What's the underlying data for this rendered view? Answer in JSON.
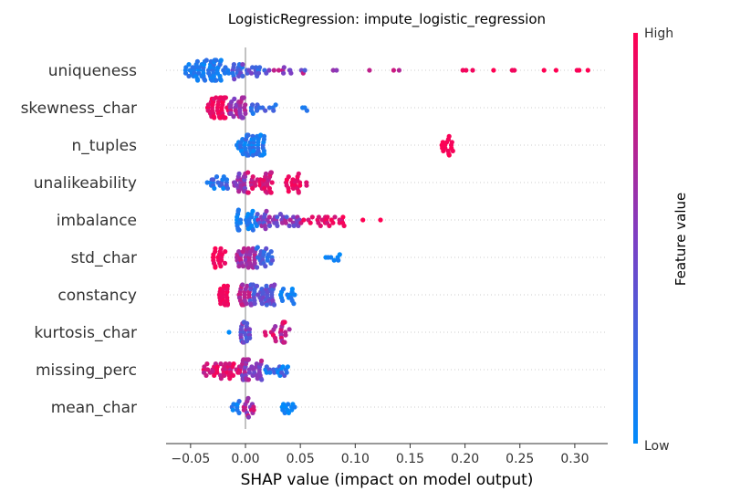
{
  "chart_data": {
    "type": "scatter",
    "subtype": "shap-beeswarm",
    "title": "LogisticRegression: impute_logistic_regression",
    "xlabel": "SHAP value (impact on model output)",
    "xlim": [
      -0.07,
      0.33
    ],
    "xticks": [
      -0.05,
      0.0,
      0.05,
      0.1,
      0.15,
      0.2,
      0.25,
      0.3
    ],
    "xtick_labels": [
      "−0.05",
      "0.00",
      "0.05",
      "0.10",
      "0.15",
      "0.20",
      "0.25",
      "0.30"
    ],
    "grid": "horizontal dotted lines per feature",
    "colorbar": {
      "label": "Feature value",
      "high": "High",
      "low": "Low",
      "low_color": "#008bfb",
      "high_color": "#ff0052"
    },
    "features": [
      {
        "name": "uniqueness",
        "clusters": [
          {
            "range": [
              -0.055,
              -0.015
            ],
            "n": 70,
            "color": [
              0.0,
              0.2
            ]
          },
          {
            "range": [
              -0.015,
              0.02
            ],
            "n": 30,
            "color": [
              0.1,
              0.5
            ]
          },
          {
            "range": [
              0.02,
              0.055
            ],
            "n": 12,
            "color": [
              0.3,
              0.8
            ]
          }
        ],
        "points": [
          {
            "x": 0.08,
            "c": 0.6
          },
          {
            "x": 0.083,
            "c": 0.55
          },
          {
            "x": 0.113,
            "c": 0.75
          },
          {
            "x": 0.135,
            "c": 0.8
          },
          {
            "x": 0.14,
            "c": 0.7
          },
          {
            "x": 0.198,
            "c": 0.95
          },
          {
            "x": 0.201,
            "c": 0.95
          },
          {
            "x": 0.207,
            "c": 0.95
          },
          {
            "x": 0.226,
            "c": 1.0
          },
          {
            "x": 0.243,
            "c": 0.95
          },
          {
            "x": 0.245,
            "c": 0.95
          },
          {
            "x": 0.272,
            "c": 1.0
          },
          {
            "x": 0.283,
            "c": 1.0
          },
          {
            "x": 0.302,
            "c": 0.95
          },
          {
            "x": 0.304,
            "c": 1.0
          },
          {
            "x": 0.312,
            "c": 1.0
          }
        ]
      },
      {
        "name": "skewness_char",
        "clusters": [
          {
            "range": [
              -0.035,
              -0.015
            ],
            "n": 45,
            "color": [
              0.85,
              1.0
            ]
          },
          {
            "range": [
              -0.015,
              0.0
            ],
            "n": 30,
            "color": [
              0.5,
              0.8
            ]
          },
          {
            "range": [
              0.005,
              0.03
            ],
            "n": 14,
            "color": [
              0.1,
              0.35
            ]
          }
        ],
        "points": [
          {
            "x": 0.052,
            "c": 0.1
          },
          {
            "x": 0.054,
            "c": 0.1
          },
          {
            "x": 0.056,
            "c": 0.15
          }
        ]
      },
      {
        "name": "n_tuples",
        "clusters": [
          {
            "range": [
              -0.008,
              0.018
            ],
            "n": 55,
            "color": [
              0.0,
              0.25
            ]
          },
          {
            "range": [
              0.178,
              0.19
            ],
            "n": 16,
            "color": [
              0.95,
              1.0
            ]
          }
        ],
        "points": []
      },
      {
        "name": "unalikeability",
        "clusters": [
          {
            "range": [
              -0.035,
              -0.015
            ],
            "n": 20,
            "color": [
              0.0,
              0.35
            ]
          },
          {
            "range": [
              -0.012,
              0.0
            ],
            "n": 22,
            "color": [
              0.4,
              0.7
            ]
          },
          {
            "range": [
              0.0,
              0.025
            ],
            "n": 35,
            "color": [
              0.7,
              1.0
            ]
          },
          {
            "range": [
              0.037,
              0.058
            ],
            "n": 22,
            "color": [
              0.85,
              1.0
            ]
          }
        ],
        "points": []
      },
      {
        "name": "imbalance",
        "clusters": [
          {
            "range": [
              -0.008,
              0.012
            ],
            "n": 30,
            "color": [
              0.0,
              0.2
            ]
          },
          {
            "range": [
              0.01,
              0.05
            ],
            "n": 40,
            "color": [
              0.3,
              0.75
            ]
          },
          {
            "range": [
              0.05,
              0.09
            ],
            "n": 25,
            "color": [
              0.8,
              1.0
            ]
          }
        ],
        "points": [
          {
            "x": 0.107,
            "c": 1.0
          },
          {
            "x": 0.123,
            "c": 1.0
          }
        ]
      },
      {
        "name": "std_char",
        "clusters": [
          {
            "range": [
              -0.03,
              -0.018
            ],
            "n": 20,
            "color": [
              0.9,
              1.0
            ]
          },
          {
            "range": [
              -0.008,
              0.01
            ],
            "n": 35,
            "color": [
              0.5,
              0.8
            ]
          },
          {
            "range": [
              0.01,
              0.025
            ],
            "n": 22,
            "color": [
              0.1,
              0.4
            ]
          },
          {
            "range": [
              0.07,
              0.088
            ],
            "n": 7,
            "color": [
              0.0,
              0.1
            ]
          }
        ],
        "points": []
      },
      {
        "name": "constancy",
        "clusters": [
          {
            "range": [
              -0.024,
              -0.016
            ],
            "n": 22,
            "color": [
              0.9,
              1.0
            ]
          },
          {
            "range": [
              -0.006,
              0.004
            ],
            "n": 22,
            "color": [
              0.6,
              0.85
            ]
          },
          {
            "range": [
              0.004,
              0.028
            ],
            "n": 45,
            "color": [
              0.25,
              0.55
            ]
          },
          {
            "range": [
              0.03,
              0.045
            ],
            "n": 14,
            "color": [
              0.0,
              0.15
            ]
          }
        ],
        "points": []
      },
      {
        "name": "kurtosis_char",
        "clusters": [
          {
            "range": [
              -0.005,
              0.004
            ],
            "n": 22,
            "color": [
              0.2,
              0.6
            ]
          },
          {
            "range": [
              0.015,
              0.04
            ],
            "n": 28,
            "color": [
              0.6,
              1.0
            ]
          }
        ],
        "points": [
          {
            "x": -0.015,
            "c": 0.0
          }
        ]
      },
      {
        "name": "missing_perc",
        "clusters": [
          {
            "range": [
              -0.038,
              -0.005
            ],
            "n": 38,
            "color": [
              0.7,
              1.0
            ]
          },
          {
            "range": [
              -0.005,
              0.015
            ],
            "n": 40,
            "color": [
              0.4,
              0.8
            ]
          },
          {
            "range": [
              0.015,
              0.04
            ],
            "n": 18,
            "color": [
              0.0,
              0.35
            ]
          }
        ],
        "points": [
          {
            "x": -0.038,
            "c": 1.0
          }
        ]
      },
      {
        "name": "mean_char",
        "clusters": [
          {
            "range": [
              -0.014,
              -0.004
            ],
            "n": 8,
            "color": [
              0.0,
              0.2
            ]
          },
          {
            "range": [
              -0.002,
              0.008
            ],
            "n": 16,
            "color": [
              0.5,
              0.9
            ]
          },
          {
            "range": [
              0.032,
              0.046
            ],
            "n": 12,
            "color": [
              0.0,
              0.1
            ]
          }
        ],
        "points": []
      }
    ]
  }
}
